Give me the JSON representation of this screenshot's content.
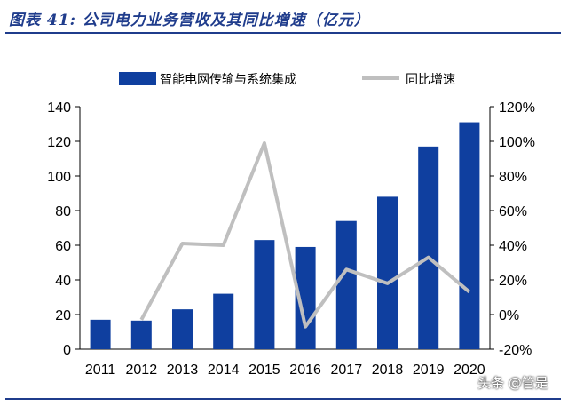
{
  "header": {
    "title": "图表 41: 公司电力业务营收及其同比增速（亿元）"
  },
  "watermark": "头条 @管是",
  "chart_data": {
    "type": "bar",
    "categories": [
      "2011",
      "2012",
      "2013",
      "2014",
      "2015",
      "2016",
      "2017",
      "2018",
      "2019",
      "2020"
    ],
    "series": [
      {
        "name": "智能电网传输与系统集成",
        "type": "bar",
        "axis": "left",
        "color": "#0f3f9f",
        "values": [
          17,
          16.5,
          23,
          32,
          63,
          59,
          74,
          88,
          117,
          131
        ]
      },
      {
        "name": "同比增速",
        "type": "line",
        "axis": "right",
        "color": "#bfbfbf",
        "values": [
          null,
          -3,
          41,
          40,
          99,
          -7,
          26,
          18,
          33,
          13
        ]
      }
    ],
    "ylim_left": [
      0,
      140
    ],
    "yticks_left": [
      "0",
      "20",
      "40",
      "60",
      "80",
      "100",
      "120",
      "140"
    ],
    "ylim_right": [
      -20,
      120
    ],
    "yticks_right": [
      "-20%",
      "0%",
      "20%",
      "40%",
      "60%",
      "80%",
      "100%",
      "120%"
    ],
    "legend_position": "top",
    "grid": false
  }
}
